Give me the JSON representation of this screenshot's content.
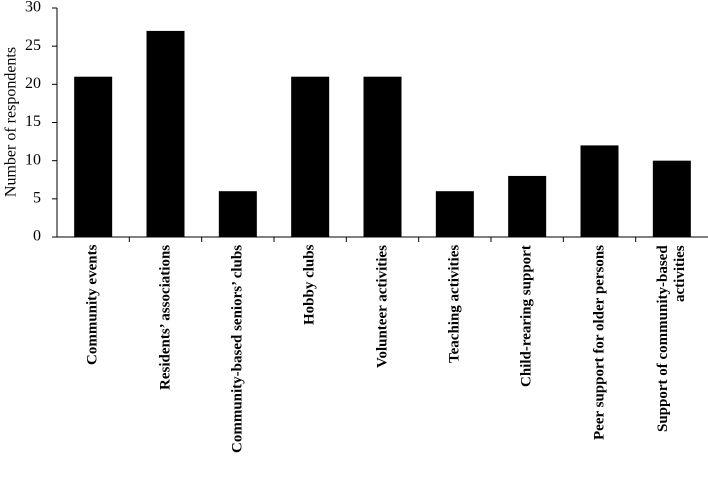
{
  "chart_data": {
    "type": "bar",
    "y_label": "Number of respondents",
    "categories": [
      "Community events",
      "Residents’ associations",
      "Community-based seniors’ clubs",
      "Hobby clubs",
      "Volunteer activities",
      "Teaching activities",
      "Child-rearing support",
      "Peer support for older persons",
      "Support of community-based activities"
    ],
    "values": [
      21,
      27,
      6,
      21,
      21,
      6,
      8,
      12,
      10
    ],
    "color": "#000000",
    "ylim": [
      0,
      30
    ],
    "yticks": [
      0,
      5,
      10,
      15,
      20,
      25,
      30
    ],
    "grid": false
  }
}
